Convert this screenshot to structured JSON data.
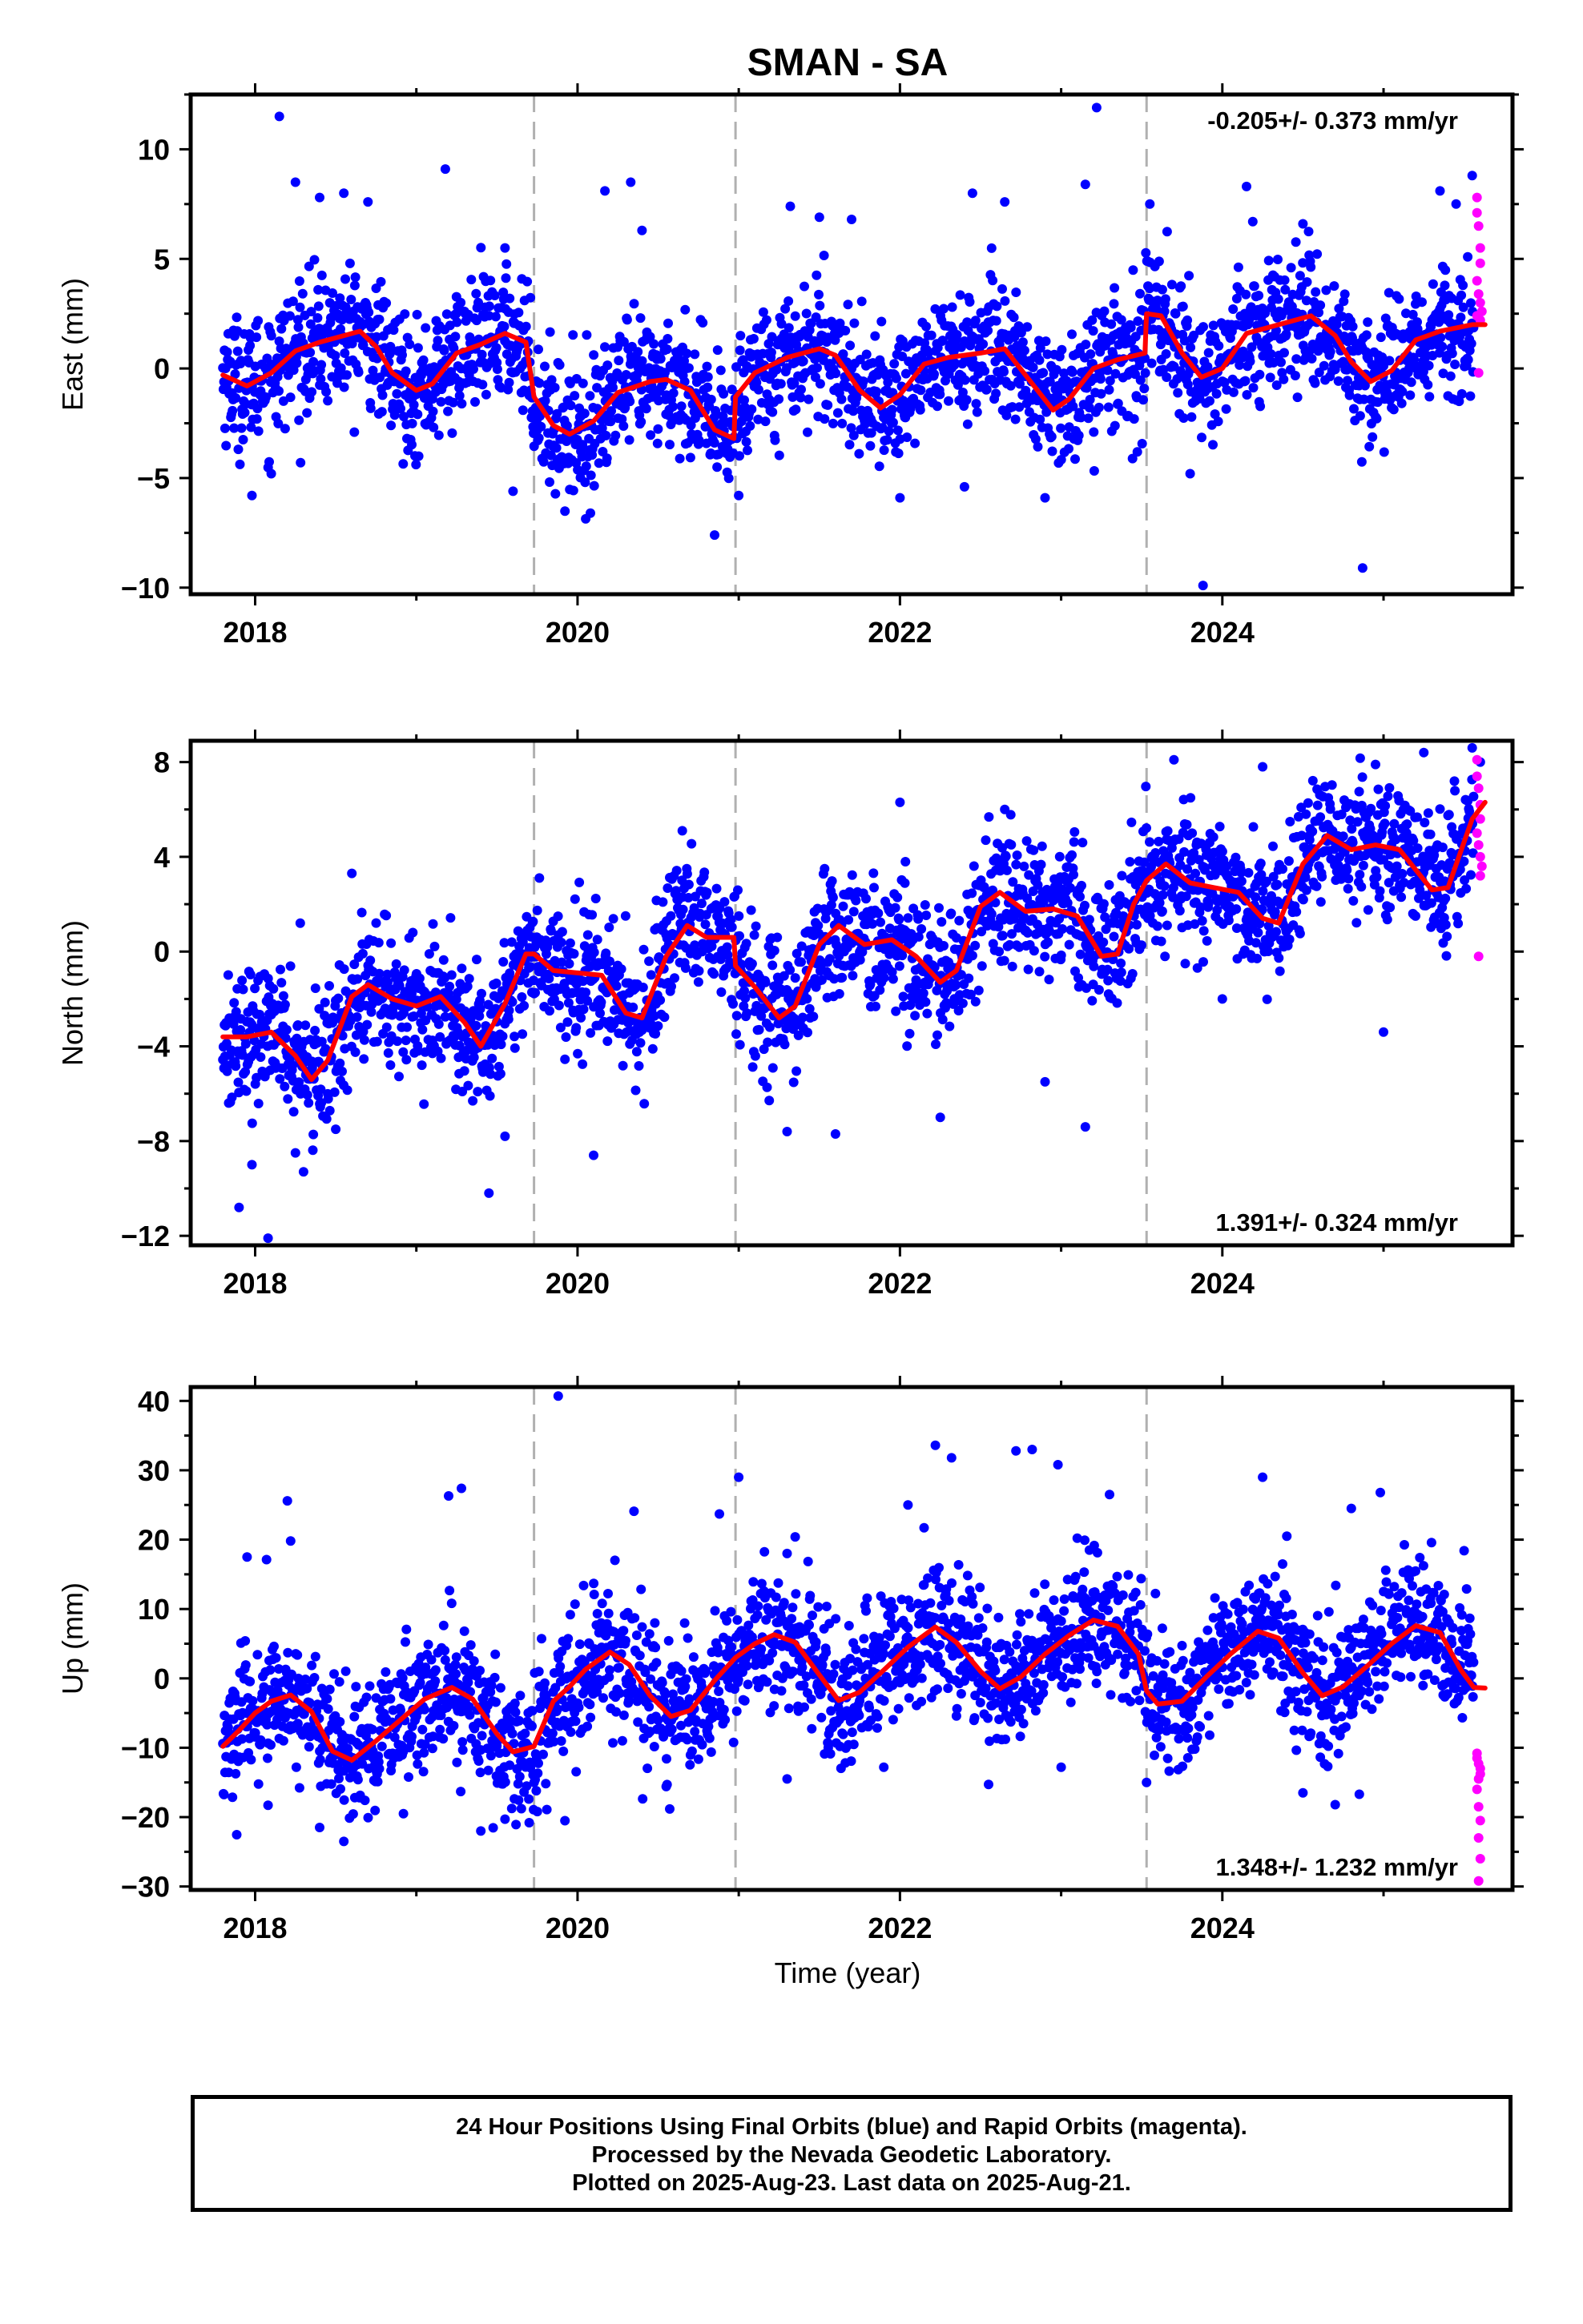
{
  "title": "SMAN - SA",
  "xlabel": "Time (year)",
  "colors": {
    "final": "#0000ff",
    "rapid": "#ff00ff",
    "fit": "#ff0000",
    "discontinuity": "#b0b0b0"
  },
  "caption": {
    "line1": "24 Hour Positions Using Final Orbits (blue) and Rapid Orbits (magenta).",
    "line2": "Processed by the Nevada Geodetic Laboratory.",
    "line3": "Plotted on 2025-Aug-23. Last data on 2025-Aug-21."
  },
  "chart_data": [
    {
      "type": "scatter",
      "ylabel": "East (mm)",
      "annotation": "-0.205+/- 0.373 mm/yr",
      "xlim": [
        2017.6,
        2025.8
      ],
      "ylim": [
        -10.3,
        12.5
      ],
      "xticks": [
        2018,
        2020,
        2022,
        2024
      ],
      "yticks": [
        -10,
        -5,
        0,
        5,
        10
      ],
      "discontinuities": [
        2019.73,
        2020.98,
        2023.53
      ],
      "data_start": 2017.8,
      "data_end": 2025.63,
      "rapid_start": 2025.56,
      "fit": [
        [
          2017.8,
          -0.3
        ],
        [
          2017.95,
          -0.8
        ],
        [
          2018.1,
          -0.2
        ],
        [
          2018.25,
          0.8
        ],
        [
          2018.4,
          1.2
        ],
        [
          2018.55,
          1.5
        ],
        [
          2018.65,
          1.7
        ],
        [
          2018.75,
          1.0
        ],
        [
          2018.85,
          -0.2
        ],
        [
          2019.0,
          -1.0
        ],
        [
          2019.1,
          -0.7
        ],
        [
          2019.25,
          0.7
        ],
        [
          2019.4,
          1.1
        ],
        [
          2019.55,
          1.6
        ],
        [
          2019.68,
          1.2
        ],
        [
          2019.73,
          -1.3
        ],
        [
          2019.85,
          -2.6
        ],
        [
          2019.95,
          -3.0
        ],
        [
          2020.1,
          -2.4
        ],
        [
          2020.25,
          -1.1
        ],
        [
          2020.45,
          -0.6
        ],
        [
          2020.55,
          -0.5
        ],
        [
          2020.7,
          -1.0
        ],
        [
          2020.85,
          -2.8
        ],
        [
          2020.97,
          -3.2
        ],
        [
          2020.98,
          -1.3
        ],
        [
          2021.1,
          -0.2
        ],
        [
          2021.3,
          0.5
        ],
        [
          2021.5,
          0.9
        ],
        [
          2021.6,
          0.6
        ],
        [
          2021.75,
          -1.0
        ],
        [
          2021.88,
          -1.8
        ],
        [
          2022.0,
          -1.2
        ],
        [
          2022.15,
          0.2
        ],
        [
          2022.3,
          0.5
        ],
        [
          2022.5,
          0.7
        ],
        [
          2022.65,
          0.9
        ],
        [
          2022.8,
          -0.5
        ],
        [
          2022.95,
          -1.9
        ],
        [
          2023.05,
          -1.4
        ],
        [
          2023.2,
          0.0
        ],
        [
          2023.35,
          0.4
        ],
        [
          2023.52,
          0.7
        ],
        [
          2023.53,
          2.5
        ],
        [
          2023.62,
          2.4
        ],
        [
          2023.75,
          0.7
        ],
        [
          2023.87,
          -0.4
        ],
        [
          2024.0,
          0.0
        ],
        [
          2024.15,
          1.6
        ],
        [
          2024.35,
          2.0
        ],
        [
          2024.55,
          2.4
        ],
        [
          2024.7,
          1.5
        ],
        [
          2024.8,
          0.3
        ],
        [
          2024.92,
          -0.6
        ],
        [
          2025.05,
          -0.1
        ],
        [
          2025.2,
          1.3
        ],
        [
          2025.35,
          1.7
        ],
        [
          2025.55,
          2.0
        ],
        [
          2025.63,
          2.0
        ]
      ],
      "points": [
        [
          2017.98,
          -5.8
        ],
        [
          2018.15,
          11.5
        ],
        [
          2018.25,
          8.5
        ],
        [
          2019.18,
          9.1
        ],
        [
          2020.08,
          -6.6
        ],
        [
          2020.33,
          8.5
        ],
        [
          2020.17,
          8.1
        ],
        [
          2020.85,
          -7.6
        ],
        [
          2021.32,
          7.4
        ],
        [
          2021.5,
          6.9
        ],
        [
          2022.0,
          -5.9
        ],
        [
          2022.45,
          8.0
        ],
        [
          2022.65,
          7.6
        ],
        [
          2023.15,
          8.4
        ],
        [
          2023.22,
          11.9
        ],
        [
          2023.88,
          -9.9
        ],
        [
          2024.15,
          8.3
        ],
        [
          2024.87,
          -9.1
        ],
        [
          2025.35,
          8.1
        ],
        [
          2025.45,
          7.5
        ],
        [
          2025.55,
          8.8
        ],
        [
          2018.1,
          -4.8
        ],
        [
          2018.4,
          7.8
        ],
        [
          2018.55,
          8.0
        ],
        [
          2018.7,
          7.6
        ],
        [
          2019.55,
          5.5
        ],
        [
          2019.6,
          -5.6
        ],
        [
          2020.4,
          6.3
        ],
        [
          2021.0,
          -5.8
        ],
        [
          2021.7,
          6.8
        ],
        [
          2022.4,
          -5.4
        ],
        [
          2022.9,
          -5.9
        ],
        [
          2023.55,
          7.5
        ],
        [
          2023.8,
          -4.8
        ],
        [
          2024.5,
          6.6
        ]
      ],
      "rapid_points": [
        [
          2025.58,
          7.8
        ],
        [
          2025.58,
          7.1
        ],
        [
          2025.59,
          6.5
        ],
        [
          2025.6,
          5.5
        ],
        [
          2025.6,
          4.8
        ],
        [
          2025.58,
          4.0
        ],
        [
          2025.59,
          3.4
        ],
        [
          2025.6,
          3.0
        ],
        [
          2025.61,
          2.6
        ],
        [
          2025.58,
          2.4
        ],
        [
          2025.6,
          2.2
        ],
        [
          2025.59,
          -0.2
        ]
      ]
    },
    {
      "type": "scatter",
      "ylabel": "North (mm)",
      "annotation": "1.391+/- 0.324 mm/yr",
      "xlim": [
        2017.6,
        2025.8
      ],
      "ylim": [
        -12.4,
        8.9
      ],
      "xticks": [
        2018,
        2020,
        2022,
        2024
      ],
      "yticks": [
        -12,
        -8,
        -4,
        0,
        4,
        8
      ],
      "discontinuities": [
        2019.73,
        2020.98,
        2023.53
      ],
      "data_start": 2017.8,
      "data_end": 2025.63,
      "rapid_start": 2025.56,
      "fit": [
        [
          2017.8,
          -3.6
        ],
        [
          2017.95,
          -3.6
        ],
        [
          2018.1,
          -3.4
        ],
        [
          2018.25,
          -4.4
        ],
        [
          2018.35,
          -5.4
        ],
        [
          2018.45,
          -4.6
        ],
        [
          2018.6,
          -1.9
        ],
        [
          2018.7,
          -1.4
        ],
        [
          2018.85,
          -2.0
        ],
        [
          2019.0,
          -2.3
        ],
        [
          2019.15,
          -1.9
        ],
        [
          2019.3,
          -3.0
        ],
        [
          2019.4,
          -4.0
        ],
        [
          2019.55,
          -2.2
        ],
        [
          2019.68,
          -0.1
        ],
        [
          2019.73,
          -0.1
        ],
        [
          2019.85,
          -0.8
        ],
        [
          2020.0,
          -0.9
        ],
        [
          2020.15,
          -1.0
        ],
        [
          2020.3,
          -2.6
        ],
        [
          2020.4,
          -2.8
        ],
        [
          2020.55,
          -0.2
        ],
        [
          2020.68,
          1.1
        ],
        [
          2020.8,
          0.6
        ],
        [
          2020.97,
          0.6
        ],
        [
          2020.98,
          -0.6
        ],
        [
          2021.1,
          -1.5
        ],
        [
          2021.25,
          -2.8
        ],
        [
          2021.35,
          -2.3
        ],
        [
          2021.5,
          0.3
        ],
        [
          2021.62,
          1.1
        ],
        [
          2021.78,
          0.3
        ],
        [
          2021.95,
          0.5
        ],
        [
          2022.1,
          -0.2
        ],
        [
          2022.25,
          -1.3
        ],
        [
          2022.35,
          -0.8
        ],
        [
          2022.5,
          1.9
        ],
        [
          2022.62,
          2.5
        ],
        [
          2022.78,
          1.7
        ],
        [
          2022.95,
          1.8
        ],
        [
          2023.1,
          1.5
        ],
        [
          2023.25,
          -0.2
        ],
        [
          2023.35,
          -0.1
        ],
        [
          2023.45,
          2.0
        ],
        [
          2023.53,
          3.0
        ],
        [
          2023.65,
          3.7
        ],
        [
          2023.8,
          2.9
        ],
        [
          2023.95,
          2.7
        ],
        [
          2024.1,
          2.5
        ],
        [
          2024.25,
          1.4
        ],
        [
          2024.35,
          1.2
        ],
        [
          2024.5,
          3.7
        ],
        [
          2024.65,
          4.9
        ],
        [
          2024.8,
          4.3
        ],
        [
          2024.95,
          4.5
        ],
        [
          2025.1,
          4.3
        ],
        [
          2025.3,
          2.6
        ],
        [
          2025.4,
          2.7
        ],
        [
          2025.55,
          5.6
        ],
        [
          2025.63,
          6.3
        ]
      ],
      "points": [
        [
          2017.9,
          -10.8
        ],
        [
          2017.98,
          -9.0
        ],
        [
          2018.08,
          -12.1
        ],
        [
          2018.28,
          1.2
        ],
        [
          2018.6,
          3.3
        ],
        [
          2019.45,
          -10.2
        ],
        [
          2019.55,
          -7.8
        ],
        [
          2020.1,
          -8.6
        ],
        [
          2020.65,
          5.1
        ],
        [
          2021.3,
          -7.6
        ],
        [
          2022.0,
          6.3
        ],
        [
          2022.25,
          -7.0
        ],
        [
          2022.65,
          6.0
        ],
        [
          2023.15,
          -7.4
        ],
        [
          2023.7,
          8.1
        ],
        [
          2024.25,
          7.8
        ],
        [
          2024.95,
          7.9
        ],
        [
          2025.25,
          8.4
        ],
        [
          2025.0,
          -3.4
        ],
        [
          2018.25,
          -8.5
        ],
        [
          2018.3,
          -9.3
        ],
        [
          2018.5,
          -7.5
        ],
        [
          2019.1,
          -4.3
        ],
        [
          2019.35,
          -6.3
        ],
        [
          2021.6,
          -7.7
        ],
        [
          2022.9,
          -5.5
        ],
        [
          2024.0,
          -2.0
        ],
        [
          2025.55,
          8.6
        ],
        [
          2025.6,
          8.0
        ]
      ],
      "rapid_points": [
        [
          2025.58,
          8.1
        ],
        [
          2025.58,
          7.4
        ],
        [
          2025.59,
          6.9
        ],
        [
          2025.6,
          6.2
        ],
        [
          2025.6,
          5.6
        ],
        [
          2025.58,
          5.0
        ],
        [
          2025.59,
          4.5
        ],
        [
          2025.6,
          4.0
        ],
        [
          2025.61,
          3.6
        ],
        [
          2025.6,
          3.2
        ],
        [
          2025.59,
          -0.2
        ]
      ]
    },
    {
      "type": "scatter",
      "ylabel": "Up (mm)",
      "annotation": "1.348+/- 1.232 mm/yr",
      "xlim": [
        2017.6,
        2025.8
      ],
      "ylim": [
        -30.5,
        42
      ],
      "xticks": [
        2018,
        2020,
        2022,
        2024
      ],
      "yticks": [
        -30,
        -20,
        -10,
        0,
        10,
        20,
        30,
        40
      ],
      "discontinuities": [
        2019.73,
        2020.98,
        2023.53
      ],
      "data_start": 2017.8,
      "data_end": 2025.63,
      "rapid_start": 2025.56,
      "fit": [
        [
          2017.8,
          -9.8
        ],
        [
          2017.9,
          -7.5
        ],
        [
          2018.0,
          -5.0
        ],
        [
          2018.1,
          -3.3
        ],
        [
          2018.22,
          -2.4
        ],
        [
          2018.35,
          -4.8
        ],
        [
          2018.48,
          -10.5
        ],
        [
          2018.6,
          -11.8
        ],
        [
          2018.75,
          -9.0
        ],
        [
          2018.9,
          -6.0
        ],
        [
          2019.05,
          -3.0
        ],
        [
          2019.22,
          -1.3
        ],
        [
          2019.35,
          -3.0
        ],
        [
          2019.5,
          -8.0
        ],
        [
          2019.6,
          -10.6
        ],
        [
          2019.7,
          -10.0
        ],
        [
          2019.73,
          -9.8
        ],
        [
          2019.85,
          -3.3
        ],
        [
          2019.95,
          -1.2
        ],
        [
          2020.05,
          1.3
        ],
        [
          2020.2,
          3.8
        ],
        [
          2020.32,
          2.0
        ],
        [
          2020.45,
          -2.5
        ],
        [
          2020.58,
          -5.5
        ],
        [
          2020.7,
          -4.6
        ],
        [
          2020.85,
          -0.3
        ],
        [
          2020.98,
          3.0
        ],
        [
          2021.1,
          5.0
        ],
        [
          2021.22,
          6.3
        ],
        [
          2021.35,
          5.2
        ],
        [
          2021.5,
          0.5
        ],
        [
          2021.62,
          -3.2
        ],
        [
          2021.75,
          -2.0
        ],
        [
          2021.9,
          1.2
        ],
        [
          2022.05,
          4.5
        ],
        [
          2022.22,
          7.4
        ],
        [
          2022.35,
          5.2
        ],
        [
          2022.5,
          1.0
        ],
        [
          2022.62,
          -1.5
        ],
        [
          2022.75,
          0.2
        ],
        [
          2022.9,
          3.5
        ],
        [
          2023.05,
          6.2
        ],
        [
          2023.2,
          8.4
        ],
        [
          2023.35,
          7.5
        ],
        [
          2023.48,
          3.5
        ],
        [
          2023.53,
          -1.8
        ],
        [
          2023.6,
          -3.7
        ],
        [
          2023.75,
          -3.3
        ],
        [
          2023.9,
          0.2
        ],
        [
          2024.05,
          3.5
        ],
        [
          2024.22,
          6.8
        ],
        [
          2024.35,
          5.8
        ],
        [
          2024.5,
          0.8
        ],
        [
          2024.62,
          -2.5
        ],
        [
          2024.75,
          -1.2
        ],
        [
          2024.9,
          1.8
        ],
        [
          2025.05,
          5.0
        ],
        [
          2025.2,
          7.6
        ],
        [
          2025.35,
          6.6
        ],
        [
          2025.48,
          1.2
        ],
        [
          2025.56,
          -1.3
        ],
        [
          2025.63,
          -1.4
        ]
      ],
      "points": [
        [
          2017.95,
          17.5
        ],
        [
          2018.2,
          25.6
        ],
        [
          2018.22,
          19.8
        ],
        [
          2019.2,
          26.3
        ],
        [
          2019.28,
          27.4
        ],
        [
          2019.88,
          40.7
        ],
        [
          2020.35,
          24.1
        ],
        [
          2020.88,
          23.7
        ],
        [
          2021.0,
          29.0
        ],
        [
          2021.35,
          20.4
        ],
        [
          2022.05,
          25.0
        ],
        [
          2022.22,
          33.6
        ],
        [
          2022.32,
          31.8
        ],
        [
          2022.72,
          32.8
        ],
        [
          2022.82,
          33.0
        ],
        [
          2022.98,
          30.8
        ],
        [
          2023.3,
          26.5
        ],
        [
          2024.25,
          29.0
        ],
        [
          2024.8,
          24.5
        ],
        [
          2024.98,
          26.8
        ],
        [
          2025.5,
          18.4
        ],
        [
          2018.55,
          -23.5
        ],
        [
          2018.4,
          -21.5
        ],
        [
          2019.4,
          -22.0
        ],
        [
          2019.7,
          -20.8
        ],
        [
          2021.3,
          -14.5
        ],
        [
          2022.55,
          -15.3
        ],
        [
          2023.53,
          -15.0
        ],
        [
          2024.5,
          -16.5
        ],
        [
          2024.7,
          -18.2
        ],
        [
          2024.85,
          -16.7
        ],
        [
          2018.08,
          -18.3
        ],
        [
          2018.92,
          -19.5
        ],
        [
          2019.55,
          -20.3
        ],
        [
          2020.55,
          -15.6
        ],
        [
          2021.9,
          -12.8
        ],
        [
          2023.0,
          -12.8
        ],
        [
          2022.15,
          21.7
        ],
        [
          2021.3,
          18.0
        ],
        [
          2023.1,
          20.2
        ],
        [
          2024.4,
          20.5
        ]
      ],
      "rapid_points": [
        [
          2025.58,
          -10.8
        ],
        [
          2025.58,
          -11.5
        ],
        [
          2025.59,
          -12.3
        ],
        [
          2025.6,
          -13.0
        ],
        [
          2025.6,
          -13.8
        ],
        [
          2025.59,
          -14.5
        ],
        [
          2025.58,
          -16.0
        ],
        [
          2025.59,
          -18.5
        ],
        [
          2025.6,
          -20.5
        ],
        [
          2025.59,
          -23.0
        ],
        [
          2025.6,
          -26.0
        ],
        [
          2025.59,
          -29.2
        ]
      ]
    }
  ]
}
